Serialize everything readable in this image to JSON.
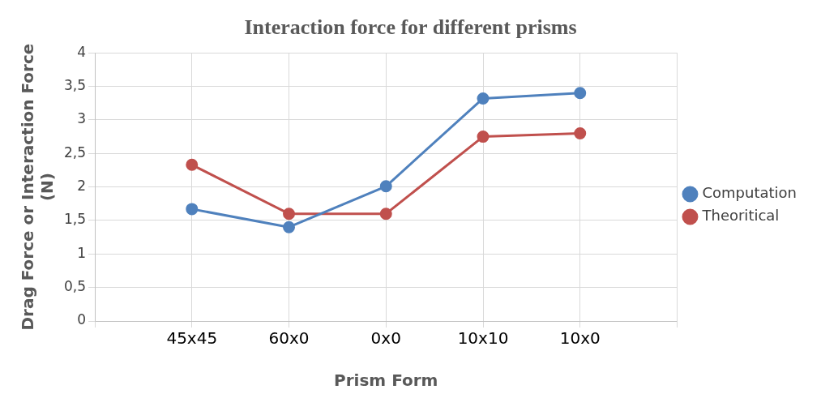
{
  "chart_data": {
    "type": "line",
    "title": "Interaction force for different prisms",
    "xlabel": "Prism Form",
    "ylabel": "Drag Force or Interaction Force (N)",
    "categories": [
      null,
      "45x45",
      "60x0",
      "0x0",
      "10x10",
      "10x0",
      null
    ],
    "series": [
      {
        "name": "Computation",
        "color": "#4f81bd",
        "values": [
          null,
          1.67,
          1.4,
          2.01,
          3.32,
          3.4,
          null
        ]
      },
      {
        "name": "Theoritical",
        "color": "#c0504d",
        "values": [
          null,
          2.33,
          1.6,
          1.6,
          2.75,
          2.8,
          null
        ]
      }
    ],
    "ylim": [
      0,
      4
    ],
    "yticks": [
      0,
      {
        "value": 0.5,
        "label": "0,5"
      },
      1,
      {
        "value": 1.5,
        "label": "1,5"
      },
      2,
      {
        "value": 2.5,
        "label": "2,5"
      },
      3,
      {
        "value": 3.5,
        "label": "3,5"
      },
      4
    ],
    "grid": true,
    "legend": "right",
    "marker": "circle",
    "line_style": "solid"
  }
}
